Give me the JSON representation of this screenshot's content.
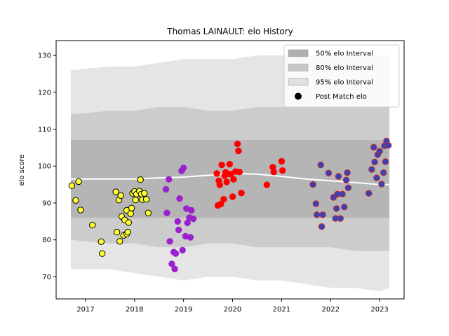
{
  "chart_data": {
    "type": "scatter",
    "title": "Thomas LAINAULT: elo History",
    "xlabel": "",
    "ylabel": "elo score",
    "xlim": [
      2016.4,
      2023.5
    ],
    "ylim": [
      64,
      134
    ],
    "x_ticks": [
      2017,
      2018,
      2019,
      2020,
      2021,
      2022,
      2023
    ],
    "y_ticks": [
      70,
      80,
      90,
      100,
      110,
      120,
      130
    ],
    "grid": false,
    "legend_position": "top-right",
    "legend": [
      {
        "label": "50% elo Interval",
        "kind": "band",
        "color": "#b0b0b0"
      },
      {
        "label": "80% elo Interval",
        "kind": "band",
        "color": "#c8c8c8"
      },
      {
        "label": "95% elo Interval",
        "kind": "band",
        "color": "#e0e0e0"
      },
      {
        "label": "Post Match elo",
        "kind": "marker",
        "color": "#000000"
      }
    ],
    "bands": {
      "x": [
        2016.7,
        2017.5,
        2018.0,
        2018.5,
        2019.0,
        2019.5,
        2020.0,
        2020.5,
        2021.0,
        2021.5,
        2022.0,
        2022.5,
        2023.0,
        2023.2
      ],
      "i50": {
        "lower": [
          86,
          86,
          86,
          86,
          86,
          86,
          86,
          86,
          86,
          86,
          86,
          86,
          86,
          86
        ],
        "upper": [
          107,
          107,
          107,
          107,
          107,
          107,
          107,
          107,
          107,
          107,
          107,
          107,
          107,
          107
        ]
      },
      "i80": {
        "lower": [
          80,
          79,
          79,
          78,
          78,
          79,
          79,
          78,
          78,
          78,
          78,
          77,
          77,
          77
        ],
        "upper": [
          114,
          115,
          115,
          116,
          116,
          115,
          115,
          116,
          116,
          116,
          116,
          116,
          116,
          116
        ]
      },
      "i95": {
        "lower": [
          72,
          72,
          71,
          70,
          69,
          70,
          70,
          69,
          69,
          68,
          67,
          67,
          66,
          67
        ],
        "upper": [
          126,
          127,
          127,
          128,
          129,
          129,
          129,
          130,
          130,
          130,
          130,
          130,
          130,
          130
        ]
      }
    },
    "mean_line": {
      "x": [
        2016.7,
        2017.5,
        2018.0,
        2018.5,
        2019.0,
        2019.5,
        2020.0,
        2020.5,
        2021.0,
        2021.5,
        2022.0,
        2022.5,
        2023.0,
        2023.2
      ],
      "y": [
        96.5,
        96.5,
        96.5,
        96.8,
        97.0,
        97.5,
        98.0,
        97.8,
        97.2,
        96.5,
        96.0,
        95.5,
        95.0,
        95.0
      ],
      "color": "#ffffff"
    },
    "series": [
      {
        "color": "#ffff33",
        "edge": "#000000",
        "points": [
          [
            2016.72,
            94.7
          ],
          [
            2016.8,
            90.7
          ],
          [
            2016.86,
            95.8
          ],
          [
            2016.9,
            88.1
          ],
          [
            2017.14,
            84.0
          ],
          [
            2017.32,
            79.5
          ],
          [
            2017.34,
            76.3
          ],
          [
            2017.62,
            93.0
          ],
          [
            2017.64,
            82.1
          ],
          [
            2017.68,
            90.8
          ],
          [
            2017.7,
            79.6
          ],
          [
            2017.72,
            92.0
          ],
          [
            2017.74,
            86.3
          ],
          [
            2017.78,
            81.2
          ],
          [
            2017.8,
            85.4
          ],
          [
            2017.84,
            88.0
          ],
          [
            2017.84,
            81.6
          ],
          [
            2017.86,
            82.1
          ],
          [
            2017.88,
            84.7
          ],
          [
            2017.92,
            87.1
          ],
          [
            2017.94,
            88.6
          ],
          [
            2017.96,
            92.6
          ],
          [
            2018.0,
            93.1
          ],
          [
            2018.02,
            90.8
          ],
          [
            2018.04,
            92.4
          ],
          [
            2018.1,
            93.2
          ],
          [
            2018.12,
            96.3
          ],
          [
            2018.14,
            92.4
          ],
          [
            2018.16,
            90.9
          ],
          [
            2018.2,
            92.6
          ],
          [
            2018.24,
            91.0
          ],
          [
            2018.28,
            87.3
          ]
        ]
      },
      {
        "color": "#9922cc",
        "edge": "#9922cc",
        "points": [
          [
            2018.64,
            93.7
          ],
          [
            2018.66,
            87.3
          ],
          [
            2018.7,
            96.4
          ],
          [
            2018.72,
            79.6
          ],
          [
            2018.76,
            73.5
          ],
          [
            2018.8,
            76.7
          ],
          [
            2018.82,
            72.1
          ],
          [
            2018.84,
            76.3
          ],
          [
            2018.88,
            85.0
          ],
          [
            2018.9,
            82.7
          ],
          [
            2018.92,
            91.2
          ],
          [
            2018.96,
            98.7
          ],
          [
            2018.98,
            77.2
          ],
          [
            2019.0,
            99.5
          ],
          [
            2019.04,
            81.0
          ],
          [
            2019.06,
            88.5
          ],
          [
            2019.08,
            84.6
          ],
          [
            2019.12,
            86.0
          ],
          [
            2019.14,
            80.7
          ],
          [
            2019.16,
            88.0
          ],
          [
            2019.2,
            85.7
          ]
        ]
      },
      {
        "color": "#ff0000",
        "edge": "#ff0000",
        "points": [
          [
            2019.68,
            98.0
          ],
          [
            2019.7,
            89.3
          ],
          [
            2019.72,
            96.0
          ],
          [
            2019.74,
            94.9
          ],
          [
            2019.76,
            89.7
          ],
          [
            2019.78,
            100.3
          ],
          [
            2019.82,
            91.0
          ],
          [
            2019.84,
            97.4
          ],
          [
            2019.86,
            98.3
          ],
          [
            2019.88,
            95.7
          ],
          [
            2019.9,
            97.9
          ],
          [
            2019.94,
            100.5
          ],
          [
            2019.96,
            97.8
          ],
          [
            2020.0,
            91.7
          ],
          [
            2020.02,
            96.4
          ],
          [
            2020.06,
            98.5
          ],
          [
            2020.1,
            106.0
          ],
          [
            2020.12,
            104.1
          ],
          [
            2020.14,
            98.4
          ],
          [
            2020.18,
            92.7
          ],
          [
            2020.7,
            94.9
          ],
          [
            2020.82,
            99.7
          ],
          [
            2020.84,
            98.4
          ],
          [
            2021.0,
            101.3
          ],
          [
            2021.02,
            98.8
          ]
        ]
      },
      {
        "color": "#3344bb",
        "edge": "#cc2222",
        "points": [
          [
            2021.64,
            95.0
          ],
          [
            2021.7,
            89.8
          ],
          [
            2021.72,
            86.8
          ],
          [
            2021.8,
            100.3
          ],
          [
            2021.82,
            83.6
          ],
          [
            2021.84,
            86.8
          ],
          [
            2021.96,
            98.1
          ],
          [
            2022.06,
            91.5
          ],
          [
            2022.1,
            85.8
          ],
          [
            2022.12,
            88.5
          ],
          [
            2022.14,
            92.4
          ],
          [
            2022.16,
            97.2
          ],
          [
            2022.2,
            85.8
          ],
          [
            2022.24,
            92.4
          ],
          [
            2022.28,
            88.9
          ],
          [
            2022.32,
            96.2
          ],
          [
            2022.34,
            98.2
          ],
          [
            2022.36,
            94.1
          ],
          [
            2022.78,
            92.6
          ],
          [
            2022.84,
            99.1
          ],
          [
            2022.88,
            105.1
          ],
          [
            2022.9,
            101.1
          ],
          [
            2022.94,
            96.8
          ],
          [
            2022.96,
            103.1
          ],
          [
            2023.0,
            104.0
          ],
          [
            2023.04,
            95.1
          ],
          [
            2023.08,
            98.2
          ],
          [
            2023.1,
            105.5
          ],
          [
            2023.12,
            101.2
          ],
          [
            2023.14,
            106.8
          ],
          [
            2023.18,
            105.6
          ]
        ]
      }
    ]
  }
}
